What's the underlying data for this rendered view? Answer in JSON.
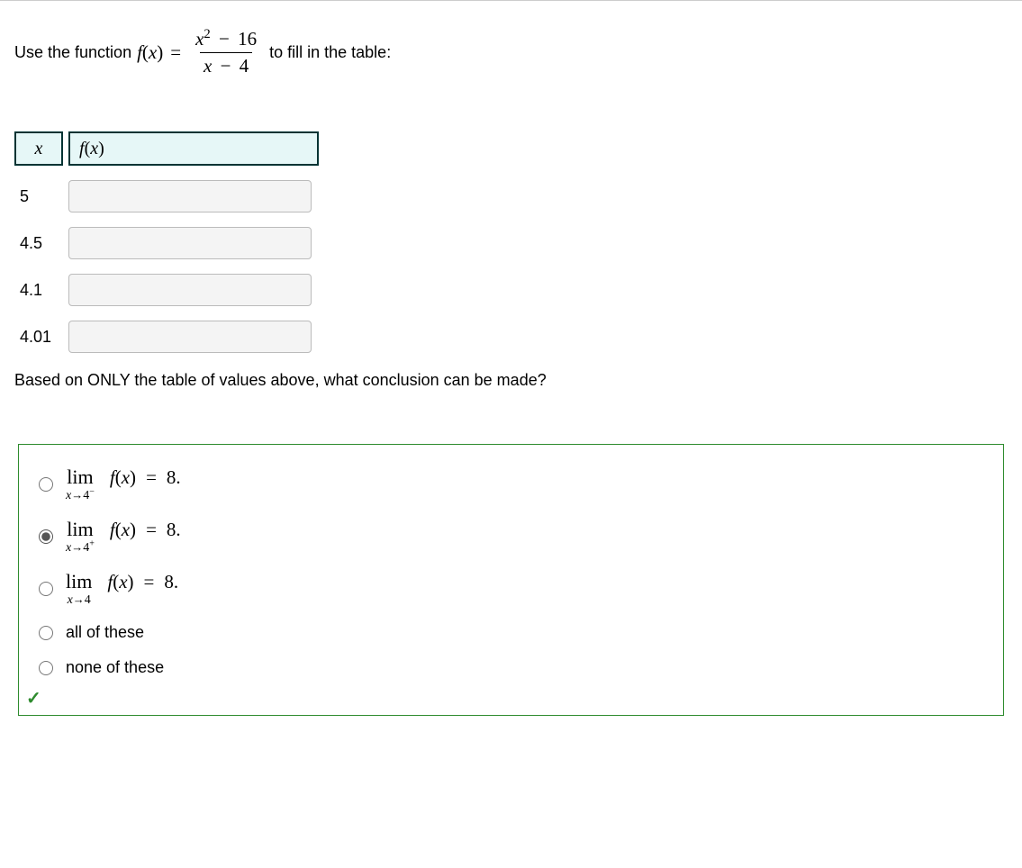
{
  "prompt": {
    "pre": "Use the function ",
    "func_name": "f",
    "func_arg": "x",
    "eq": "=",
    "numerator_term1": "x",
    "numerator_exp": "2",
    "numerator_op": "−",
    "numerator_term2": "16",
    "denominator_term1": "x",
    "denominator_op": "−",
    "denominator_term2": "4",
    "post": " to fill in the table:"
  },
  "table": {
    "header_x": "x",
    "header_fx_f": "f",
    "header_fx_arg": "x",
    "rows": [
      {
        "x": "5",
        "fx": ""
      },
      {
        "x": "4.5",
        "fx": ""
      },
      {
        "x": "4.1",
        "fx": ""
      },
      {
        "x": "4.01",
        "fx": ""
      }
    ]
  },
  "question2": "Based on ONLY the table of values above, what conclusion can be made?",
  "options": {
    "lim_label": "lim",
    "approach_var": "x",
    "arrow": "→",
    "approach_val": "4",
    "sup_minus": "−",
    "sup_plus": "+",
    "fx_f": "f",
    "fx_arg": "x",
    "eq": "=",
    "value": "8",
    "period": ".",
    "opt4": "all of these",
    "opt5": "none of these",
    "selected_index": 1
  },
  "checkmark": "✓"
}
